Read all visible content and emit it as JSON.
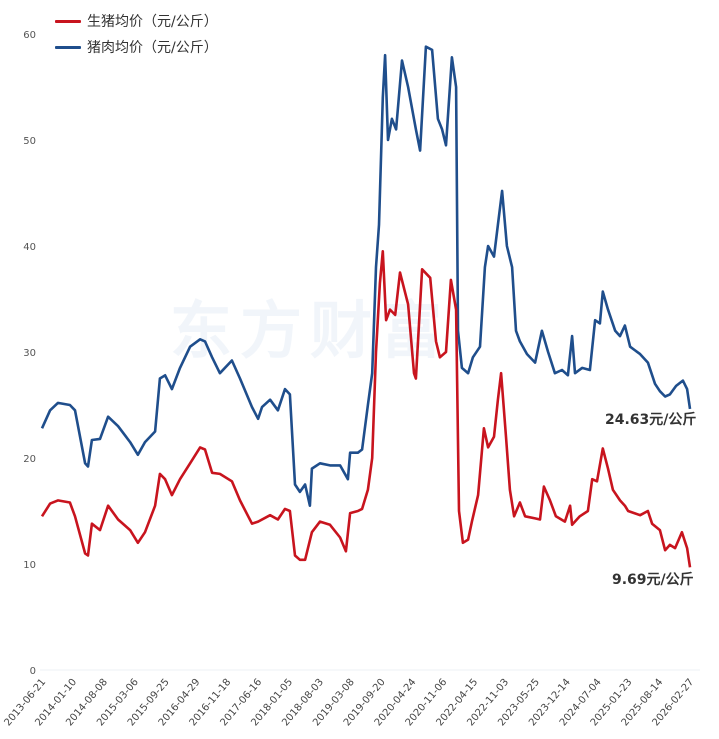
{
  "watermark": "东方财富",
  "chart_data": {
    "type": "line",
    "title": "",
    "xlabel": "",
    "ylabel": "",
    "ylim": [
      0,
      60
    ],
    "yticks": [
      0,
      10,
      20,
      30,
      40,
      50,
      60
    ],
    "grid": false,
    "legend_position": "top-left",
    "x_tick_labels": [
      "2013-06-21",
      "2014-01-10",
      "2014-08-08",
      "2015-03-06",
      "2015-09-25",
      "2016-04-29",
      "2016-11-18",
      "2017-06-16",
      "2018-01-05",
      "2018-08-03",
      "2019-03-08",
      "2019-09-20",
      "2020-04-24",
      "2020-11-06",
      "2022-04-15",
      "2022-11-03",
      "2023-05-25",
      "2023-12-14",
      "2024-07-04",
      "2025-01-23",
      "2025-08-14",
      "2026-02-27"
    ],
    "x_note": "x values are positions in tick-label index units",
    "series": [
      {
        "name": "生猪均价（元/公斤）",
        "color": "#c8141e",
        "points": [
          [
            0,
            14.5
          ],
          [
            0.25,
            15.7
          ],
          [
            0.49,
            16.0
          ],
          [
            0.86,
            15.8
          ],
          [
            1.02,
            14.5
          ],
          [
            1.33,
            11
          ],
          [
            1.42,
            10.8
          ],
          [
            1.54,
            13.8
          ],
          [
            1.79,
            13.2
          ],
          [
            2.04,
            15.5
          ],
          [
            2.35,
            14.2
          ],
          [
            2.72,
            13.2
          ],
          [
            2.96,
            12.0
          ],
          [
            3.18,
            13
          ],
          [
            3.49,
            15.5
          ],
          [
            3.64,
            18.5
          ],
          [
            3.8,
            18
          ],
          [
            4.01,
            16.5
          ],
          [
            4.26,
            18
          ],
          [
            4.57,
            19.5
          ],
          [
            4.88,
            21
          ],
          [
            5.03,
            20.8
          ],
          [
            5.25,
            18.6
          ],
          [
            5.49,
            18.5
          ],
          [
            5.86,
            17.8
          ],
          [
            6.11,
            16.0
          ],
          [
            6.48,
            13.8
          ],
          [
            6.67,
            14.0
          ],
          [
            7.04,
            14.6
          ],
          [
            7.28,
            14.2
          ],
          [
            7.5,
            15.2
          ],
          [
            7.65,
            15
          ],
          [
            7.81,
            10.8
          ],
          [
            7.96,
            10.4
          ],
          [
            8.12,
            10.4
          ],
          [
            8.33,
            13
          ],
          [
            8.58,
            14
          ],
          [
            8.89,
            13.7
          ],
          [
            9.2,
            12.5
          ],
          [
            9.38,
            11.2
          ],
          [
            9.51,
            14.8
          ],
          [
            9.75,
            15.0
          ],
          [
            9.88,
            15.2
          ],
          [
            10.06,
            17
          ],
          [
            10.19,
            20
          ],
          [
            10.31,
            30
          ],
          [
            10.43,
            36.5
          ],
          [
            10.52,
            39.5
          ],
          [
            10.62,
            33
          ],
          [
            10.74,
            34
          ],
          [
            10.9,
            33.5
          ],
          [
            11.05,
            37.5
          ],
          [
            11.3,
            34.5
          ],
          [
            11.48,
            28
          ],
          [
            11.54,
            27.5
          ],
          [
            11.73,
            37.8
          ],
          [
            11.98,
            37
          ],
          [
            12.16,
            31
          ],
          [
            12.28,
            29.5
          ],
          [
            12.47,
            30
          ],
          [
            12.62,
            36.8
          ],
          [
            12.78,
            34
          ],
          [
            12.87,
            15
          ],
          [
            12.99,
            12
          ],
          [
            13.15,
            12.3
          ],
          [
            13.27,
            14
          ],
          [
            13.46,
            16.5
          ],
          [
            13.64,
            22.8
          ],
          [
            13.77,
            21
          ],
          [
            13.95,
            22
          ],
          [
            14.07,
            25.5
          ],
          [
            14.17,
            28
          ],
          [
            14.32,
            22
          ],
          [
            14.44,
            17
          ],
          [
            14.57,
            14.5
          ],
          [
            14.75,
            15.8
          ],
          [
            14.91,
            14.5
          ],
          [
            15.22,
            14.3
          ],
          [
            15.37,
            14.2
          ],
          [
            15.49,
            17.3
          ],
          [
            15.68,
            16
          ],
          [
            15.86,
            14.5
          ],
          [
            16.14,
            14.0
          ],
          [
            16.3,
            15.5
          ],
          [
            16.36,
            13.7
          ],
          [
            16.6,
            14.5
          ],
          [
            16.85,
            15
          ],
          [
            16.98,
            18
          ],
          [
            17.13,
            17.8
          ],
          [
            17.31,
            20.9
          ],
          [
            17.47,
            19
          ],
          [
            17.62,
            17
          ],
          [
            17.84,
            16
          ],
          [
            17.99,
            15.5
          ],
          [
            18.09,
            15
          ],
          [
            18.46,
            14.6
          ],
          [
            18.7,
            15
          ],
          [
            18.83,
            13.8
          ],
          [
            19.07,
            13.2
          ],
          [
            19.23,
            11.3
          ],
          [
            19.38,
            11.8
          ],
          [
            19.54,
            11.5
          ],
          [
            19.75,
            13
          ],
          [
            19.91,
            11.5
          ],
          [
            20,
            9.69
          ]
        ]
      },
      {
        "name": "猪肉均价（元/公斤）",
        "color": "#1f4e8c",
        "points": [
          [
            0,
            22.8
          ],
          [
            0.25,
            24.5
          ],
          [
            0.49,
            25.2
          ],
          [
            0.86,
            25.0
          ],
          [
            1.02,
            24.5
          ],
          [
            1.33,
            19.5
          ],
          [
            1.42,
            19.2
          ],
          [
            1.54,
            21.7
          ],
          [
            1.79,
            21.8
          ],
          [
            2.04,
            23.9
          ],
          [
            2.35,
            23.0
          ],
          [
            2.72,
            21.5
          ],
          [
            2.96,
            20.3
          ],
          [
            3.18,
            21.5
          ],
          [
            3.49,
            22.5
          ],
          [
            3.64,
            27.5
          ],
          [
            3.8,
            27.8
          ],
          [
            4.01,
            26.5
          ],
          [
            4.26,
            28.5
          ],
          [
            4.57,
            30.5
          ],
          [
            4.88,
            31.2
          ],
          [
            5.03,
            31.0
          ],
          [
            5.25,
            29.5
          ],
          [
            5.49,
            28.0
          ],
          [
            5.86,
            29.2
          ],
          [
            6.11,
            27.5
          ],
          [
            6.48,
            24.8
          ],
          [
            6.67,
            23.7
          ],
          [
            6.79,
            24.8
          ],
          [
            7.04,
            25.5
          ],
          [
            7.28,
            24.5
          ],
          [
            7.5,
            26.5
          ],
          [
            7.65,
            26.0
          ],
          [
            7.81,
            17.5
          ],
          [
            7.96,
            16.8
          ],
          [
            8.12,
            17.5
          ],
          [
            8.27,
            15.5
          ],
          [
            8.33,
            19
          ],
          [
            8.58,
            19.5
          ],
          [
            8.89,
            19.3
          ],
          [
            9.2,
            19.3
          ],
          [
            9.44,
            18.0
          ],
          [
            9.51,
            20.5
          ],
          [
            9.75,
            20.5
          ],
          [
            9.88,
            20.8
          ],
          [
            10.06,
            25
          ],
          [
            10.19,
            28
          ],
          [
            10.31,
            38
          ],
          [
            10.4,
            42
          ],
          [
            10.52,
            54
          ],
          [
            10.59,
            58
          ],
          [
            10.68,
            50
          ],
          [
            10.8,
            52
          ],
          [
            10.93,
            51
          ],
          [
            11.11,
            57.5
          ],
          [
            11.3,
            55
          ],
          [
            11.54,
            51
          ],
          [
            11.67,
            49
          ],
          [
            11.85,
            58.8
          ],
          [
            12.04,
            58.5
          ],
          [
            12.22,
            52
          ],
          [
            12.35,
            51
          ],
          [
            12.47,
            49.5
          ],
          [
            12.65,
            57.8
          ],
          [
            12.78,
            55
          ],
          [
            12.84,
            32
          ],
          [
            12.96,
            28.5
          ],
          [
            13.15,
            28
          ],
          [
            13.3,
            29.5
          ],
          [
            13.52,
            30.5
          ],
          [
            13.67,
            38
          ],
          [
            13.77,
            40
          ],
          [
            13.95,
            39
          ],
          [
            14.07,
            42
          ],
          [
            14.2,
            45.2
          ],
          [
            14.35,
            40
          ],
          [
            14.51,
            38
          ],
          [
            14.63,
            32
          ],
          [
            14.75,
            31
          ],
          [
            14.97,
            29.8
          ],
          [
            15.22,
            29
          ],
          [
            15.43,
            32
          ],
          [
            15.62,
            30
          ],
          [
            15.83,
            28
          ],
          [
            16.05,
            28.3
          ],
          [
            16.23,
            27.8
          ],
          [
            16.36,
            31.5
          ],
          [
            16.45,
            28
          ],
          [
            16.67,
            28.5
          ],
          [
            16.91,
            28.3
          ],
          [
            17.07,
            33
          ],
          [
            17.22,
            32.7
          ],
          [
            17.31,
            35.7
          ],
          [
            17.47,
            34
          ],
          [
            17.69,
            32
          ],
          [
            17.84,
            31.5
          ],
          [
            17.99,
            32.5
          ],
          [
            18.15,
            30.5
          ],
          [
            18.46,
            29.8
          ],
          [
            18.7,
            29
          ],
          [
            18.92,
            27
          ],
          [
            19.07,
            26.3
          ],
          [
            19.23,
            25.8
          ],
          [
            19.38,
            26
          ],
          [
            19.57,
            26.8
          ],
          [
            19.78,
            27.3
          ],
          [
            19.91,
            26.5
          ],
          [
            20,
            24.63
          ]
        ]
      }
    ],
    "annotations": [
      "24.63元/公斤",
      "9.69元/公斤"
    ]
  }
}
